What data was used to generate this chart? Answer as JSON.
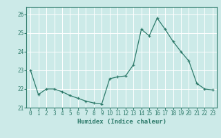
{
  "x": [
    0,
    1,
    2,
    3,
    4,
    5,
    6,
    7,
    8,
    9,
    10,
    11,
    12,
    13,
    14,
    15,
    16,
    17,
    18,
    19,
    20,
    21,
    22,
    23
  ],
  "y": [
    23.0,
    21.7,
    22.0,
    22.0,
    21.85,
    21.65,
    21.5,
    21.35,
    21.25,
    21.2,
    22.55,
    22.65,
    22.7,
    23.3,
    25.2,
    24.85,
    25.8,
    25.2,
    24.55,
    24.0,
    23.5,
    22.3,
    22.0,
    21.95
  ],
  "line_color": "#2d7a6a",
  "marker": "+",
  "marker_size": 3.5,
  "xlabel": "Humidex (Indice chaleur)",
  "ylim": [
    21.0,
    26.4
  ],
  "yticks": [
    21,
    22,
    23,
    24,
    25,
    26
  ],
  "xticks": [
    0,
    1,
    2,
    3,
    4,
    5,
    6,
    7,
    8,
    9,
    10,
    11,
    12,
    13,
    14,
    15,
    16,
    17,
    18,
    19,
    20,
    21,
    22,
    23
  ],
  "bg_color": "#cceae8",
  "grid_color": "#ffffff",
  "tick_color": "#2d7a6a",
  "label_color": "#2d7a6a",
  "fig_bg": "#cceae8",
  "xlabel_fontsize": 6.5,
  "tick_fontsize": 5.5
}
